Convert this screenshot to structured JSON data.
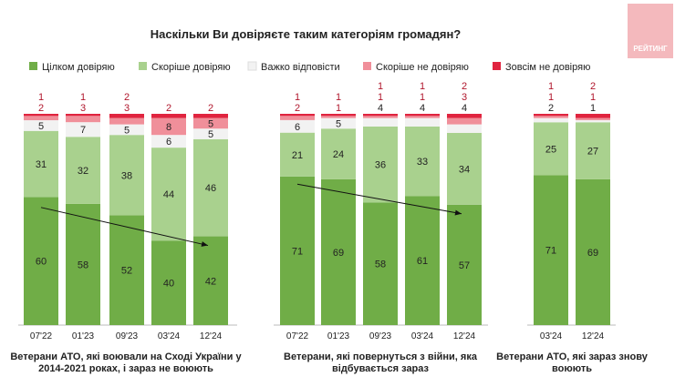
{
  "logo": "РЕЙТИНГ",
  "chart_data": {
    "type": "bar",
    "stacked": true,
    "title": "Наскільки Ви довіряєте таким категоріям громадян?",
    "legend_position": "top",
    "series": [
      {
        "name": "Цілком довіряю",
        "color": "#70ad47"
      },
      {
        "name": "Скоріше довіряю",
        "color": "#a9d18e"
      },
      {
        "name": "Важко відповісти",
        "color": "#f2f2f2"
      },
      {
        "name": "Скоріше не довіряю",
        "color": "#f08f9a"
      },
      {
        "name": "Зовсім не довіряю",
        "color": "#e0243f"
      }
    ],
    "groups": [
      {
        "label": "Ветерани АТО, які воювали на Сході України у 2014-2021 роках, і зараз не воюють",
        "categories": [
          "07'22",
          "01'23",
          "09'23",
          "03'24",
          "12'24"
        ],
        "values": [
          [
            60,
            31,
            5,
            2,
            1
          ],
          [
            58,
            32,
            7,
            3,
            1
          ],
          [
            52,
            38,
            5,
            3,
            2
          ],
          [
            40,
            44,
            6,
            8,
            2
          ],
          [
            42,
            46,
            5,
            5,
            2
          ]
        ],
        "trend_arrow": true
      },
      {
        "label": "Ветерани, які повернуться з війни, яка відбувається зараз",
        "categories": [
          "07'22",
          "01'23",
          "09'23",
          "03'24",
          "12'24"
        ],
        "values": [
          [
            71,
            21,
            6,
            2,
            1
          ],
          [
            69,
            24,
            5,
            1,
            1
          ],
          [
            58,
            36,
            4,
            1,
            1
          ],
          [
            61,
            33,
            4,
            1,
            1
          ],
          [
            57,
            34,
            4,
            3,
            2
          ]
        ],
        "trend_arrow": true
      },
      {
        "label": "Ветерани АТО, які зараз знову воюють",
        "categories": [
          "03'24",
          "12'24"
        ],
        "values": [
          [
            71,
            25,
            2,
            1,
            1
          ],
          [
            69,
            27,
            1,
            1,
            2
          ]
        ],
        "trend_arrow": false
      }
    ],
    "ylim": [
      0,
      100
    ]
  }
}
